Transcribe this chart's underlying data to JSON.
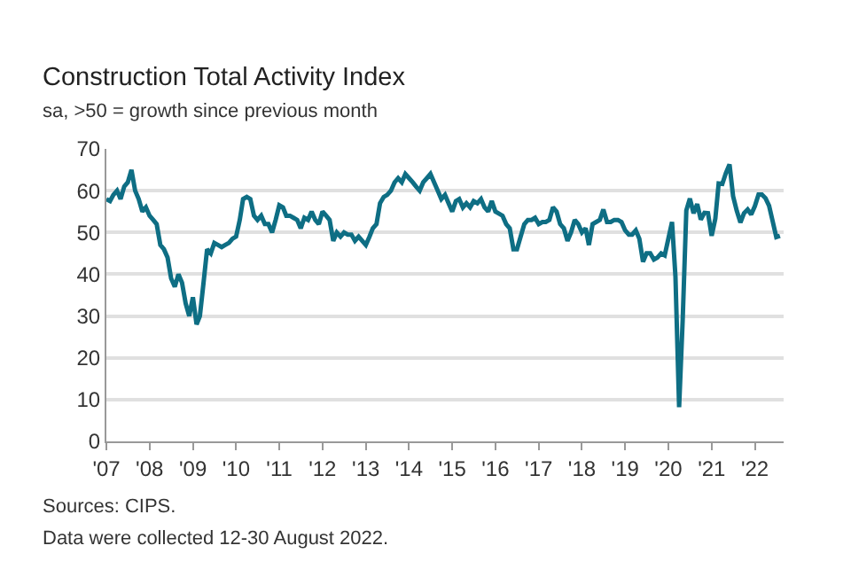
{
  "chart_data": {
    "type": "line",
    "title": "Construction Total Activity Index",
    "subtitle": "sa, >50 = growth since previous month",
    "x": [
      "2007-01",
      "2007-02",
      "2007-03",
      "2007-04",
      "2007-05",
      "2007-06",
      "2007-07",
      "2007-08",
      "2007-09",
      "2007-10",
      "2007-11",
      "2007-12",
      "2008-01",
      "2008-02",
      "2008-03",
      "2008-04",
      "2008-05",
      "2008-06",
      "2008-07",
      "2008-08",
      "2008-09",
      "2008-10",
      "2008-11",
      "2008-12",
      "2009-01",
      "2009-02",
      "2009-03",
      "2009-04",
      "2009-05",
      "2009-06",
      "2009-07",
      "2009-08",
      "2009-09",
      "2009-10",
      "2009-11",
      "2009-12",
      "2010-01",
      "2010-02",
      "2010-03",
      "2010-04",
      "2010-05",
      "2010-06",
      "2010-07",
      "2010-08",
      "2010-09",
      "2010-10",
      "2010-11",
      "2010-12",
      "2011-01",
      "2011-02",
      "2011-03",
      "2011-04",
      "2011-05",
      "2011-06",
      "2011-07",
      "2011-08",
      "2011-09",
      "2011-10",
      "2011-11",
      "2011-12",
      "2012-01",
      "2012-02",
      "2012-03",
      "2012-04",
      "2012-05",
      "2012-06",
      "2012-07",
      "2012-08",
      "2012-09",
      "2012-10",
      "2012-11",
      "2012-12",
      "2013-01",
      "2013-02",
      "2013-03",
      "2013-04",
      "2013-05",
      "2013-06",
      "2013-07",
      "2013-08",
      "2013-09",
      "2013-10",
      "2013-11",
      "2013-12",
      "2014-01",
      "2014-02",
      "2014-03",
      "2014-04",
      "2014-05",
      "2014-06",
      "2014-07",
      "2014-08",
      "2014-09",
      "2014-10",
      "2014-11",
      "2014-12",
      "2015-01",
      "2015-02",
      "2015-03",
      "2015-04",
      "2015-05",
      "2015-06",
      "2015-07",
      "2015-08",
      "2015-09",
      "2015-10",
      "2015-11",
      "2015-12",
      "2016-01",
      "2016-02",
      "2016-03",
      "2016-04",
      "2016-05",
      "2016-06",
      "2016-07",
      "2016-08",
      "2016-09",
      "2016-10",
      "2016-11",
      "2016-12",
      "2017-01",
      "2017-02",
      "2017-03",
      "2017-04",
      "2017-05",
      "2017-06",
      "2017-07",
      "2017-08",
      "2017-09",
      "2017-10",
      "2017-11",
      "2017-12",
      "2018-01",
      "2018-02",
      "2018-03",
      "2018-04",
      "2018-05",
      "2018-06",
      "2018-07",
      "2018-08",
      "2018-09",
      "2018-10",
      "2018-11",
      "2018-12",
      "2019-01",
      "2019-02",
      "2019-03",
      "2019-04",
      "2019-05",
      "2019-06",
      "2019-07",
      "2019-08",
      "2019-09",
      "2019-10",
      "2019-11",
      "2019-12",
      "2020-01",
      "2020-02",
      "2020-03",
      "2020-04",
      "2020-05",
      "2020-06",
      "2020-07",
      "2020-08",
      "2020-09",
      "2020-10",
      "2020-11",
      "2020-12",
      "2021-01",
      "2021-02",
      "2021-03",
      "2021-04",
      "2021-05",
      "2021-06",
      "2021-07",
      "2021-08",
      "2021-09",
      "2021-10",
      "2021-11",
      "2021-12",
      "2022-01",
      "2022-02",
      "2022-03",
      "2022-04",
      "2022-05",
      "2022-06",
      "2022-07",
      "2022-08"
    ],
    "series": [
      {
        "color": "#0e6e84",
        "values": [
          58,
          57.5,
          59,
          60,
          58,
          61,
          62,
          65,
          60,
          58,
          55,
          56,
          54,
          53,
          52,
          47,
          46,
          44,
          39,
          37,
          40,
          38,
          33,
          30,
          34.5,
          28,
          30,
          38,
          46,
          45,
          47.5,
          47,
          46.5,
          47,
          47.5,
          48.5,
          49,
          53,
          58,
          58.5,
          58,
          54,
          53,
          54,
          52,
          52,
          50,
          53,
          56.5,
          56,
          54,
          54,
          53.5,
          53,
          51,
          53.5,
          53,
          55,
          53,
          52,
          55,
          54,
          53,
          48,
          50,
          49,
          50,
          49.5,
          49.5,
          48,
          49,
          48,
          47,
          49,
          51,
          52,
          57,
          58.5,
          59,
          60,
          62,
          63,
          62,
          64,
          63,
          62,
          61,
          60,
          62,
          63,
          64,
          62,
          60,
          58,
          59,
          57,
          55,
          57.5,
          58,
          56,
          57,
          56,
          57.5,
          57,
          58,
          56,
          55,
          57.5,
          55,
          54.5,
          54,
          52,
          51,
          46,
          46,
          49,
          52,
          53,
          53,
          53.5,
          52,
          52.5,
          52.5,
          53,
          56,
          55,
          52,
          51,
          48,
          50,
          53,
          52,
          50,
          51,
          47,
          52,
          52.5,
          53,
          55.5,
          52.5,
          52.5,
          53,
          53,
          52.5,
          50.5,
          49.5,
          49.5,
          50.5,
          48.5,
          43,
          45,
          45,
          43.5,
          44,
          45,
          44.5,
          48.5,
          52.5,
          39.5,
          8.2,
          28.9,
          55.3,
          58.1,
          54.6,
          56.8,
          53.1,
          54.7,
          54.6,
          49.2,
          53.3,
          61.7,
          61.6,
          64.2,
          66.3,
          58.7,
          55.2,
          52.4,
          54.6,
          55.5,
          54.3,
          56.3,
          59.1,
          59.1,
          58.2,
          56.4,
          52.6,
          48.9,
          49.2
        ]
      }
    ],
    "xlim": [
      "2007-01",
      "2022-09"
    ],
    "xticks": [
      {
        "value": "2007-01",
        "label": "'07"
      },
      {
        "value": "2008-01",
        "label": "'08"
      },
      {
        "value": "2009-01",
        "label": "'09"
      },
      {
        "value": "2010-01",
        "label": "'10"
      },
      {
        "value": "2011-01",
        "label": "'11"
      },
      {
        "value": "2012-01",
        "label": "'12"
      },
      {
        "value": "2013-01",
        "label": "'13"
      },
      {
        "value": "2014-01",
        "label": "'14"
      },
      {
        "value": "2015-01",
        "label": "'15"
      },
      {
        "value": "2016-01",
        "label": "'16"
      },
      {
        "value": "2017-01",
        "label": "'17"
      },
      {
        "value": "2018-01",
        "label": "'18"
      },
      {
        "value": "2019-01",
        "label": "'19"
      },
      {
        "value": "2020-01",
        "label": "'20"
      },
      {
        "value": "2021-01",
        "label": "'21"
      },
      {
        "value": "2022-01",
        "label": "'22"
      }
    ],
    "ylim": [
      0,
      70
    ],
    "yticks": [
      0,
      10,
      20,
      30,
      40,
      50,
      60,
      70
    ],
    "grid": "y",
    "marker": "none",
    "line_style": "solid",
    "annotations": [
      "Sources: CIPS.",
      "Data were collected 12-30 August 2022."
    ]
  }
}
